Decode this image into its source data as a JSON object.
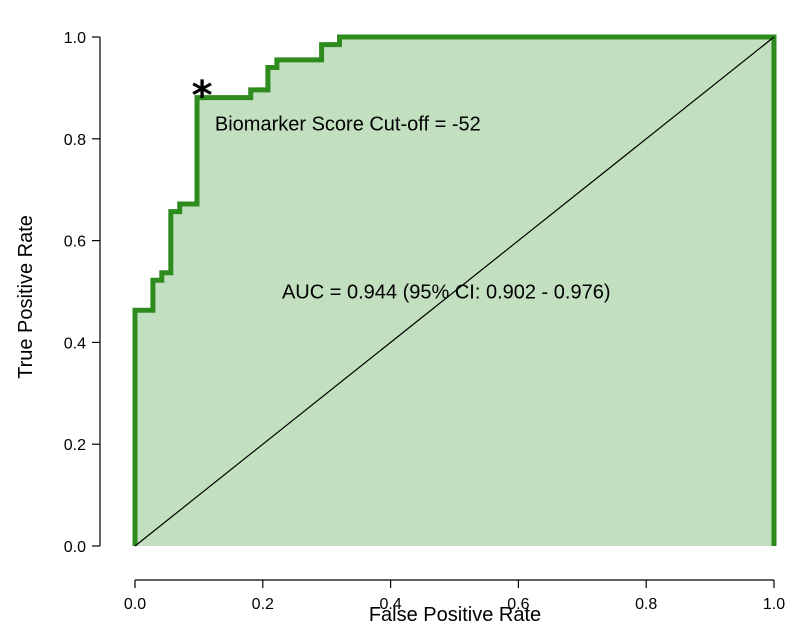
{
  "chart_data": {
    "type": "line",
    "xlabel": "False Positive Rate",
    "ylabel": "True Positive Rate",
    "xlim": [
      0,
      1
    ],
    "ylim": [
      0,
      1
    ],
    "xticks": [
      0.0,
      0.2,
      0.4,
      0.6,
      0.8,
      1.0
    ],
    "yticks": [
      0.0,
      0.2,
      0.4,
      0.6,
      0.8,
      1.0
    ],
    "xtick_labels": [
      "0.0",
      "0.2",
      "0.4",
      "0.6",
      "0.8",
      "1.0"
    ],
    "ytick_labels": [
      "0.0",
      "0.2",
      "0.4",
      "0.6",
      "0.8",
      "1.0"
    ],
    "grid": false,
    "series": [
      {
        "style": "step",
        "filled": true,
        "color": "#2e8b1e",
        "fill_color": "#c2dfc0",
        "x": [
          0.0,
          0.0,
          0.028,
          0.028,
          0.042,
          0.042,
          0.056,
          0.056,
          0.07,
          0.07,
          0.097,
          0.097,
          0.111,
          0.111,
          0.125,
          0.125,
          0.139,
          0.139,
          0.153,
          0.153,
          0.181,
          0.181,
          0.208,
          0.208,
          0.222,
          0.222,
          0.25,
          0.25,
          0.292,
          0.292,
          0.32,
          0.32,
          1.0,
          1.0
        ],
        "y": [
          0.0,
          0.463,
          0.463,
          0.522,
          0.522,
          0.537,
          0.537,
          0.657,
          0.657,
          0.672,
          0.672,
          0.881,
          0.881,
          0.881,
          0.881,
          0.881,
          0.881,
          0.881,
          0.881,
          0.881,
          0.881,
          0.896,
          0.896,
          0.94,
          0.94,
          0.955,
          0.955,
          0.955,
          0.955,
          0.985,
          0.985,
          1.0,
          1.0,
          0.0
        ]
      },
      {
        "style": "line",
        "color": "#000000",
        "x": [
          0,
          1
        ],
        "y": [
          0,
          1
        ]
      }
    ],
    "marker_point": {
      "x": 0.105,
      "y": 0.9,
      "symbol": "*"
    },
    "annotations": [
      {
        "text": "Biomarker Score Cut-off = -52",
        "x": 0.125,
        "y": 0.83
      },
      {
        "text": "AUC = 0.944 (95% CI: 0.902 - 0.976)",
        "x": 0.23,
        "y": 0.5
      }
    ]
  }
}
